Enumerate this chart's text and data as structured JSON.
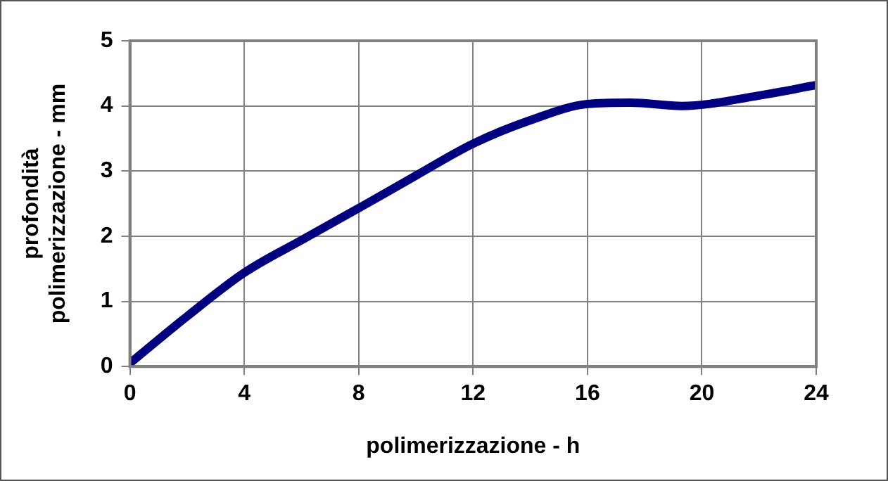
{
  "chart_data": {
    "type": "line",
    "xlabel": "polimerizzazione - h",
    "ylabel": "profondità\npolimerizzazione - mm",
    "x": [
      0,
      2,
      4,
      6,
      8,
      10,
      12,
      14,
      16,
      17.5,
      19.3,
      22,
      24
    ],
    "series": [
      {
        "color": "#000080",
        "values": [
          0.05,
          0.77,
          1.44,
          1.94,
          2.43,
          2.93,
          3.42,
          3.78,
          4.03,
          4.05,
          4.0,
          4.16,
          4.32
        ]
      }
    ],
    "xlim": [
      0,
      24
    ],
    "xticks": [
      0,
      4,
      8,
      12,
      16,
      20,
      24
    ],
    "ylim": [
      0,
      5
    ],
    "yticks": [
      0,
      1,
      2,
      3,
      4,
      5
    ],
    "grid": true,
    "legend": false,
    "marker": "none",
    "line_style": "solid"
  }
}
